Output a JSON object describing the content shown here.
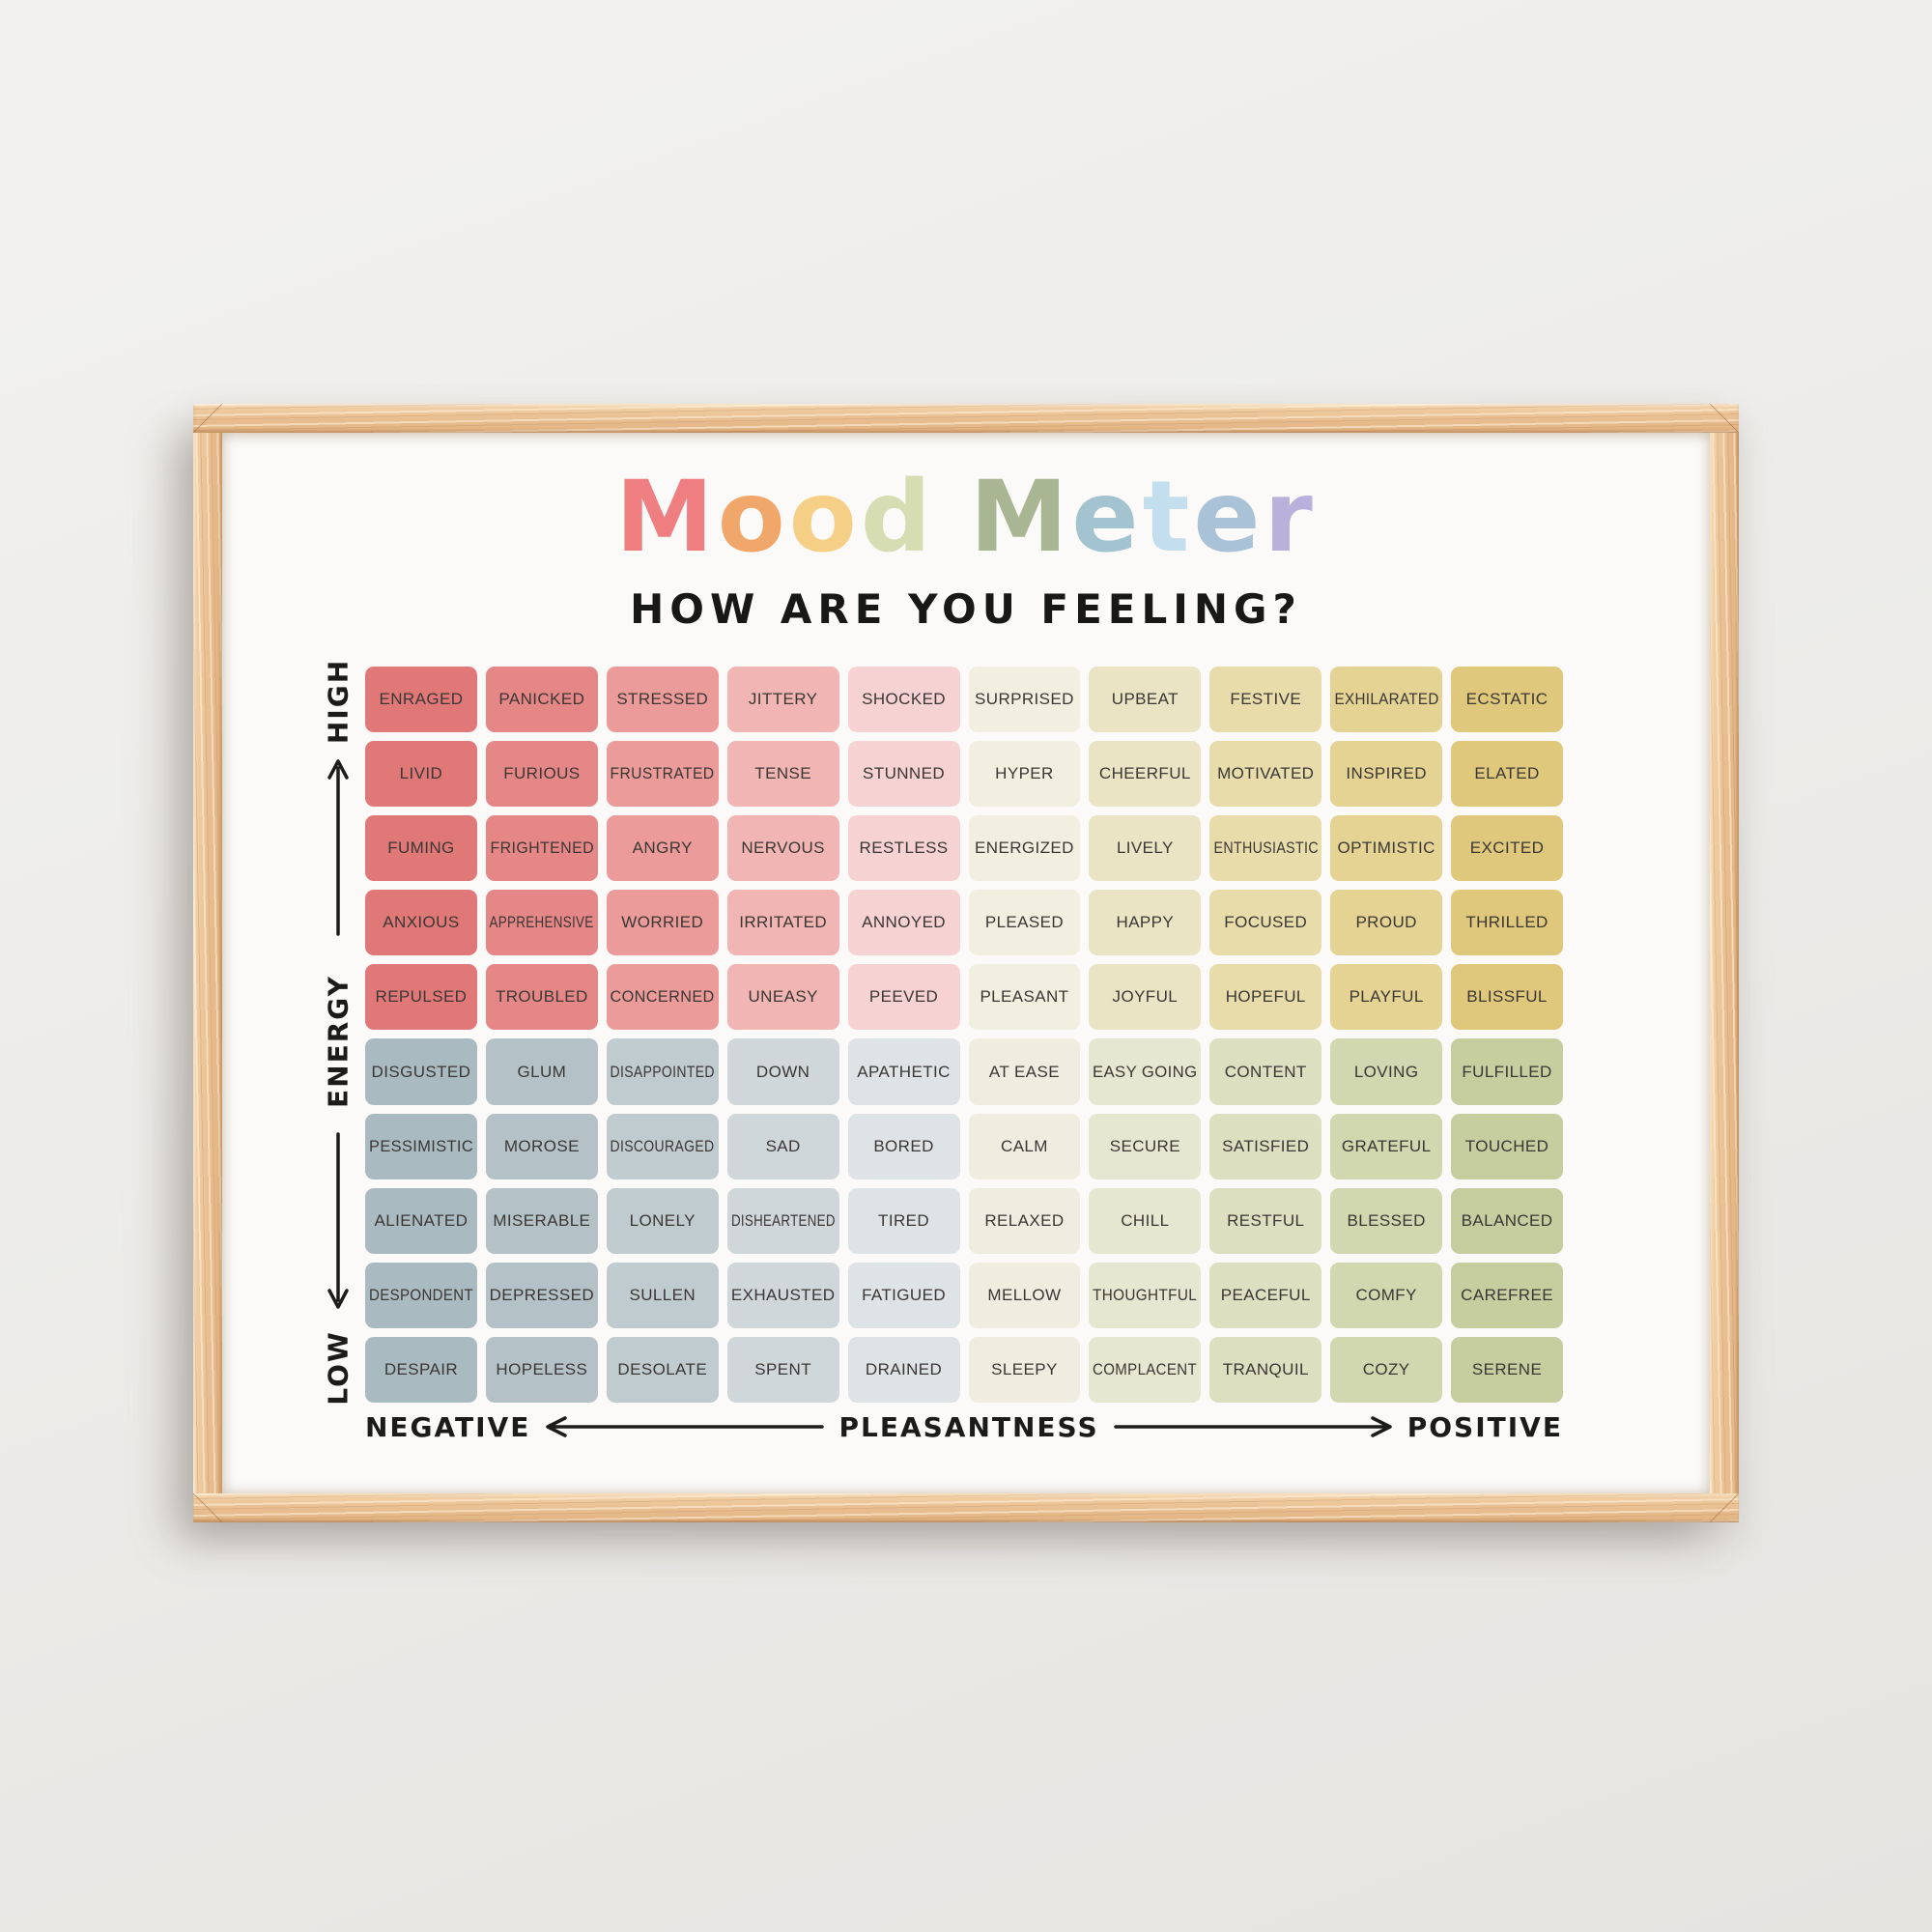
{
  "poster": {
    "title_letters": [
      {
        "char": "M",
        "color": "#ee7e80"
      },
      {
        "char": "o",
        "color": "#f2a76a"
      },
      {
        "char": "o",
        "color": "#f5cf86"
      },
      {
        "char": "d",
        "color": "#d7ddb3"
      },
      {
        "char": " ",
        "color": ""
      },
      {
        "char": "M",
        "color": "#a9b694"
      },
      {
        "char": "e",
        "color": "#a2c3cf"
      },
      {
        "char": "t",
        "color": "#c3deec"
      },
      {
        "char": "e",
        "color": "#a9c2d8"
      },
      {
        "char": "r",
        "color": "#b9b0dc"
      }
    ],
    "subtitle": "HOW ARE YOU FEELING?",
    "y_axis": {
      "high": "HIGH",
      "label": "ENERGY",
      "low": "LOW"
    },
    "x_axis": {
      "negative": "NEGATIVE",
      "label": "PLEASANTNESS",
      "positive": "POSITIVE"
    }
  },
  "chart_data": {
    "type": "heatmap",
    "title": "Mood Meter",
    "subtitle": "HOW ARE YOU FEELING?",
    "xlabel": "PLEASANTNESS (NEGATIVE to POSITIVE)",
    "ylabel": "ENERGY (LOW to HIGH)",
    "legend_position": "none",
    "grid_size": "10x10",
    "rows_top_to_bottom": [
      [
        "ENRAGED",
        "PANICKED",
        "STRESSED",
        "JITTERY",
        "SHOCKED",
        "SURPRISED",
        "UPBEAT",
        "FESTIVE",
        "EXHILARATED",
        "ECSTATIC"
      ],
      [
        "LIVID",
        "FURIOUS",
        "FRUSTRATED",
        "TENSE",
        "STUNNED",
        "HYPER",
        "CHEERFUL",
        "MOTIVATED",
        "INSPIRED",
        "ELATED"
      ],
      [
        "FUMING",
        "FRIGHTENED",
        "ANGRY",
        "NERVOUS",
        "RESTLESS",
        "ENERGIZED",
        "LIVELY",
        "ENTHUSIASTIC",
        "OPTIMISTIC",
        "EXCITED"
      ],
      [
        "ANXIOUS",
        "APPREHENSIVE",
        "WORRIED",
        "IRRITATED",
        "ANNOYED",
        "PLEASED",
        "HAPPY",
        "FOCUSED",
        "PROUD",
        "THRILLED"
      ],
      [
        "REPULSED",
        "TROUBLED",
        "CONCERNED",
        "UNEASY",
        "PEEVED",
        "PLEASANT",
        "JOYFUL",
        "HOPEFUL",
        "PLAYFUL",
        "BLISSFUL"
      ],
      [
        "DISGUSTED",
        "GLUM",
        "DISAPPOINTED",
        "DOWN",
        "APATHETIC",
        "AT EASE",
        "EASY GOING",
        "CONTENT",
        "LOVING",
        "FULFILLED"
      ],
      [
        "PESSIMISTIC",
        "MOROSE",
        "DISCOURAGED",
        "SAD",
        "BORED",
        "CALM",
        "SECURE",
        "SATISFIED",
        "GRATEFUL",
        "TOUCHED"
      ],
      [
        "ALIENATED",
        "MISERABLE",
        "LONELY",
        "DISHEARTENED",
        "TIRED",
        "RELAXED",
        "CHILL",
        "RESTFUL",
        "BLESSED",
        "BALANCED"
      ],
      [
        "DESPONDENT",
        "DEPRESSED",
        "SULLEN",
        "EXHAUSTED",
        "FATIGUED",
        "MELLOW",
        "THOUGHTFUL",
        "PEACEFUL",
        "COMFY",
        "CAREFREE"
      ],
      [
        "DESPAIR",
        "HOPELESS",
        "DESOLATE",
        "SPENT",
        "DRAINED",
        "SLEEPY",
        "COMPLACENT",
        "TRANQUIL",
        "COZY",
        "SERENE"
      ]
    ],
    "column_colors_high_rows": [
      "#e07878",
      "#e68787",
      "#eb9b99",
      "#f1b5b4",
      "#f6d2d2",
      "#f1efdf",
      "#ebe4c4",
      "#e7dcaa",
      "#e4d393",
      "#dfc87c"
    ],
    "column_colors_low_rows": [
      "#a9bac0",
      "#b4c2c7",
      "#c0cbd0",
      "#cfd7db",
      "#dee3e5",
      "#eeeddf",
      "#e6e7d1",
      "#dcdfc0",
      "#d1d7ae",
      "#c6ce9f"
    ],
    "quadrants": {
      "high_energy_negative": "red-pink",
      "high_energy_positive": "cream-gold",
      "low_energy_negative": "slate-blue-gray",
      "low_energy_positive": "cream-sage-green"
    }
  }
}
